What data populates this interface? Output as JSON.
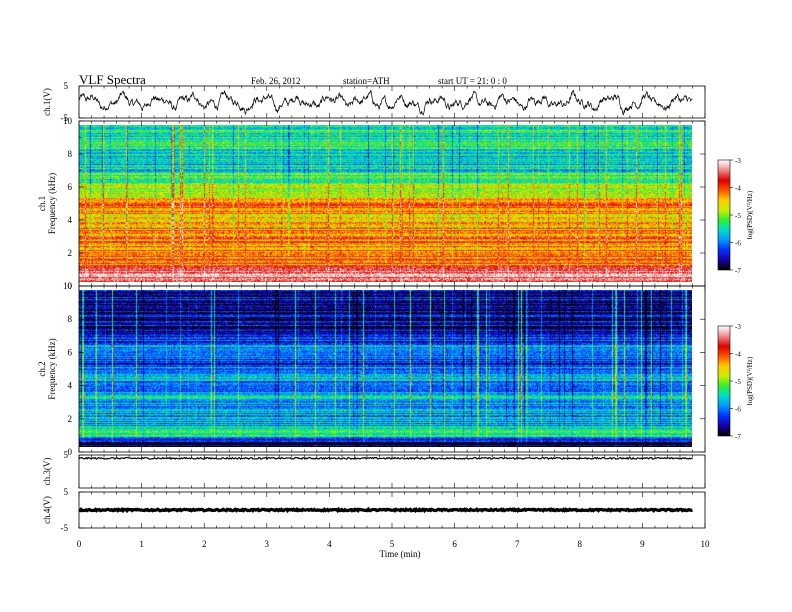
{
  "header": {
    "title": "VLF  Spectra",
    "date": "Feb. 26, 2012",
    "station": "station=ATH",
    "start": "start  UT  =    21: 0  : 0"
  },
  "colors": {
    "spec_scale": [
      "#000000",
      "#1a00a8",
      "#0033ff",
      "#0099ff",
      "#00ddcc",
      "#33ee33",
      "#ccee00",
      "#ffcc00",
      "#ff5500",
      "#dd0000",
      "#ee8888",
      "#ffffff"
    ]
  },
  "chart_data": [
    {
      "name": "ch1-voltage",
      "type": "line",
      "ylabel": "ch.1(V)",
      "ylim": [
        -5,
        5
      ],
      "yticks": [
        "5",
        "-5"
      ],
      "x_range_min": [
        0,
        9.8
      ],
      "description_level": "noisy waveform ~ -2..2 V"
    },
    {
      "name": "ch1-spectrogram",
      "type": "heatmap",
      "ylabel": "ch.1\nFrequency  (kHz)",
      "ylim": [
        0,
        10
      ],
      "yticks": [
        "0",
        "2",
        "4",
        "6",
        "8",
        "10"
      ],
      "bands_khz": [
        {
          "f": 0.3,
          "level": -3.4
        },
        {
          "f": 0.8,
          "level": -3.8
        },
        {
          "f": 1.2,
          "level": -4.2
        },
        {
          "f": 1.8,
          "level": -3.9
        },
        {
          "f": 2.3,
          "level": -4.4
        },
        {
          "f": 2.8,
          "level": -4.0
        },
        {
          "f": 3.2,
          "level": -4.3
        },
        {
          "f": 3.8,
          "level": -4.6
        },
        {
          "f": 4.3,
          "level": -4.5
        },
        {
          "f": 4.8,
          "level": -4.0
        },
        {
          "f": 5.3,
          "level": -4.7
        },
        {
          "f": 5.9,
          "level": -4.8
        },
        {
          "f": 6.6,
          "level": -5.3
        },
        {
          "f": 7.5,
          "level": -5.6
        },
        {
          "f": 8.5,
          "level": -5.5
        },
        {
          "f": 9.4,
          "level": -5.4
        }
      ],
      "colorbar": {
        "label": "log(PSD)(V²/Hz)",
        "ticks": [
          "-3",
          "-4",
          "-5",
          "-6",
          "-7"
        ],
        "range": [
          -7,
          -3
        ]
      }
    },
    {
      "name": "ch2-spectrogram",
      "type": "heatmap",
      "ylabel": "ch.2\nFrequency  (kHz)",
      "ylim": [
        0,
        10
      ],
      "yticks": [
        "0",
        "2",
        "4",
        "6",
        "8",
        "10"
      ],
      "bands_khz": [
        {
          "f": 0.2,
          "level": -6.8
        },
        {
          "f": 0.8,
          "level": -5.3
        },
        {
          "f": 1.3,
          "level": -5.7
        },
        {
          "f": 2.0,
          "level": -5.8
        },
        {
          "f": 2.6,
          "level": -6.0
        },
        {
          "f": 3.2,
          "level": -5.7
        },
        {
          "f": 3.7,
          "level": -6.2
        },
        {
          "f": 4.3,
          "level": -5.8
        },
        {
          "f": 4.8,
          "level": -5.9
        },
        {
          "f": 5.5,
          "level": -6.3
        },
        {
          "f": 6.2,
          "level": -5.6
        },
        {
          "f": 6.8,
          "level": -6.4
        },
        {
          "f": 7.6,
          "level": -6.6
        },
        {
          "f": 8.6,
          "level": -6.7
        },
        {
          "f": 9.5,
          "level": -6.6
        }
      ],
      "colorbar": {
        "label": "log(PSD)(V²/Hz)",
        "ticks": [
          "-3",
          "-4",
          "-5",
          "-6",
          "-7"
        ],
        "range": [
          -7,
          -3
        ]
      }
    },
    {
      "name": "ch3-voltage",
      "type": "line",
      "ylabel": "ch.3(V)",
      "ylim": [
        -5,
        5
      ],
      "yticks": [
        "5"
      ],
      "level": 4.0
    },
    {
      "name": "ch4-voltage",
      "type": "line",
      "ylabel": "ch.4(V)",
      "ylim": [
        -5,
        5
      ],
      "yticks": [
        "5",
        "-5"
      ],
      "level": 0.0
    }
  ],
  "xaxis": {
    "label": "Time  (min)",
    "range": [
      0,
      10
    ],
    "ticks": [
      "0",
      "1",
      "2",
      "3",
      "4",
      "5",
      "6",
      "7",
      "8",
      "9",
      "10"
    ]
  }
}
